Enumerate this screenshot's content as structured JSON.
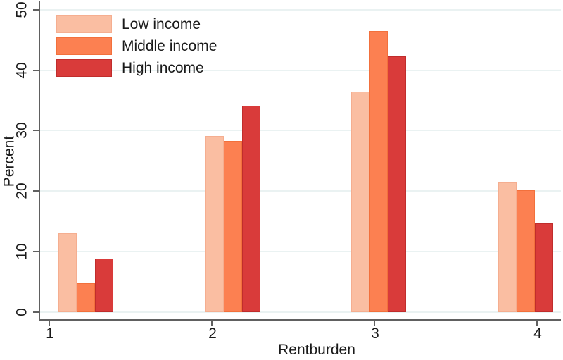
{
  "chart_data": {
    "type": "bar",
    "title": "",
    "xlabel": "Rentburden",
    "ylabel": "Percent",
    "categories": [
      "1",
      "2",
      "3",
      "4"
    ],
    "series": [
      {
        "name": "Low income",
        "fill": "#FABEA2",
        "border": "#F5AE90",
        "values": [
          13.0,
          29.1,
          36.4,
          21.4
        ]
      },
      {
        "name": "Middle income",
        "fill": "#FC8051",
        "border": "#F2703C",
        "values": [
          4.8,
          28.3,
          46.5,
          20.2
        ]
      },
      {
        "name": "High income",
        "fill": "#D93B3A",
        "border": "#C02D2C",
        "values": [
          8.8,
          34.1,
          42.3,
          14.7
        ]
      }
    ],
    "ylim": [
      0,
      50
    ],
    "yticks": [
      0,
      10,
      20,
      30,
      40,
      50
    ],
    "grid": true,
    "legend_position": "top-left-inside",
    "colors": {
      "gridline": "#EAF2F2",
      "axis": "#606060",
      "text": "#1A1A1A",
      "background": "#FFFFFF"
    }
  }
}
